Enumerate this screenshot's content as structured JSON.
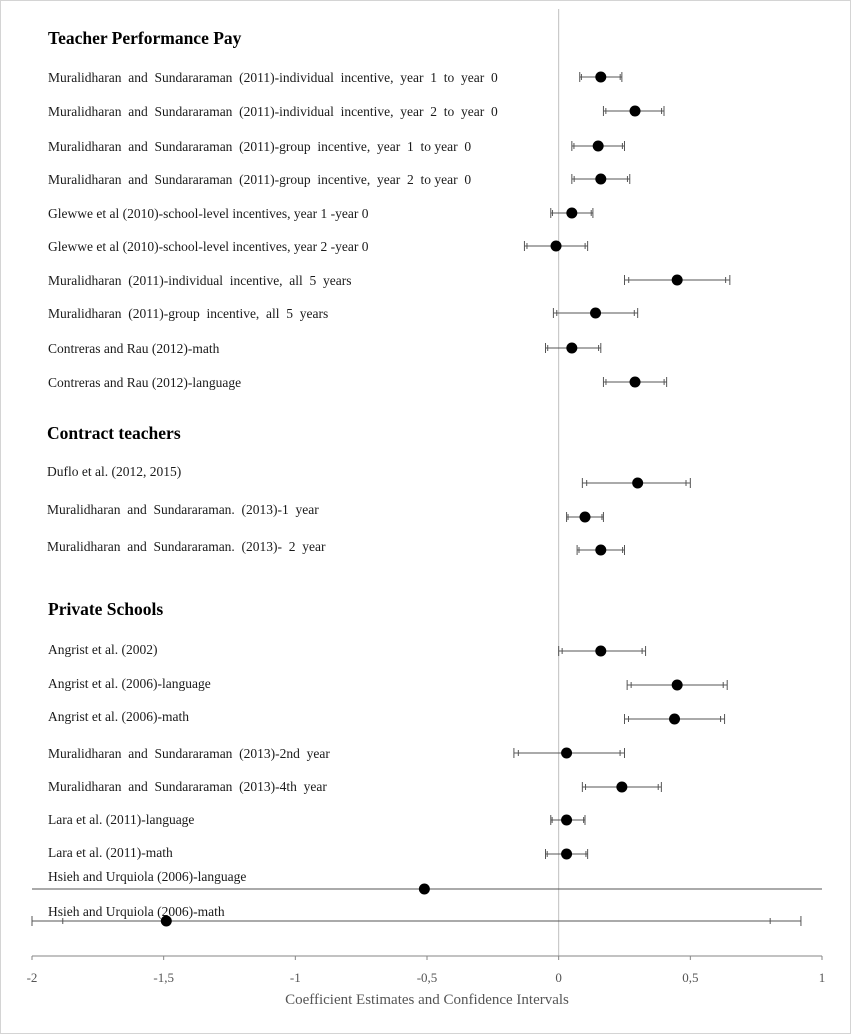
{
  "chart_data": {
    "type": "scatter",
    "subtype": "forest-plot",
    "xlabel": "Coefficient Estimates and Confidence Intervals",
    "xlim": [
      -2,
      1
    ],
    "xticks": [
      "-2",
      "-1,5",
      "-1",
      "-0,5",
      "0",
      "0,5",
      "1"
    ],
    "xtick_values": [
      -2,
      -1.5,
      -1,
      -0.5,
      0,
      0.5,
      1
    ],
    "grid": false,
    "legend": "none",
    "colors": {
      "marker": "#000000",
      "line": "#555555",
      "zero_line": "#bfbfbf",
      "axis": "#868686"
    },
    "groups": [
      {
        "name": "Teacher Performance Pay",
        "rows": [
          {
            "label": "Muralidharan  and  Sundararaman  (2011)-individual  incentive,  year  1  to  year  0",
            "est": 0.16,
            "lo": 0.08,
            "hi": 0.24
          },
          {
            "label": "Muralidharan  and  Sundararaman  (2011)-individual  incentive,  year  2  to  year  0",
            "est": 0.29,
            "lo": 0.17,
            "hi": 0.4
          },
          {
            "label": "Muralidharan  and  Sundararaman  (2011)-group  incentive,  year  1  to year  0",
            "est": 0.15,
            "lo": 0.05,
            "hi": 0.25
          },
          {
            "label": "Muralidharan  and  Sundararaman  (2011)-group  incentive,  year  2  to year  0",
            "est": 0.16,
            "lo": 0.05,
            "hi": 0.27
          },
          {
            "label": "Glewwe et al (2010)-school-level incentives, year 1 -year 0",
            "est": 0.05,
            "lo": -0.03,
            "hi": 0.13
          },
          {
            "label": "Glewwe et al (2010)-school-level incentives, year 2 -year 0",
            "est": -0.01,
            "lo": -0.13,
            "hi": 0.11
          },
          {
            "label": "Muralidharan  (2011)-individual  incentive,  all  5  years",
            "est": 0.45,
            "lo": 0.25,
            "hi": 0.65
          },
          {
            "label": "Muralidharan  (2011)-group  incentive,  all  5  years",
            "est": 0.14,
            "lo": -0.02,
            "hi": 0.3
          },
          {
            "label": "Contreras and Rau (2012)-math",
            "est": 0.05,
            "lo": -0.05,
            "hi": 0.16
          },
          {
            "label": "Contreras and Rau (2012)-language",
            "est": 0.29,
            "lo": 0.17,
            "hi": 0.41
          }
        ]
      },
      {
        "name": "Contract teachers",
        "rows": [
          {
            "label": "Duflo et al. (2012, 2015)",
            "est": 0.3,
            "lo": 0.09,
            "hi": 0.5
          },
          {
            "label": "Muralidharan  and  Sundararaman.  (2013)-1  year",
            "est": 0.1,
            "lo": 0.03,
            "hi": 0.17
          },
          {
            "label": "Muralidharan  and  Sundararaman.  (2013)-  2  year",
            "est": 0.16,
            "lo": 0.07,
            "hi": 0.25
          }
        ]
      },
      {
        "name": "Private Schools",
        "rows": [
          {
            "label": "Angrist et al. (2002)",
            "est": 0.16,
            "lo": 0.0,
            "hi": 0.33
          },
          {
            "label": "Angrist et al. (2006)-language",
            "est": 0.45,
            "lo": 0.26,
            "hi": 0.64
          },
          {
            "label": "Angrist et al. (2006)-math",
            "est": 0.44,
            "lo": 0.25,
            "hi": 0.63
          },
          {
            "label": "Muralidharan  and  Sundararaman  (2013)-2nd  year",
            "est": 0.03,
            "lo": -0.17,
            "hi": 0.25
          },
          {
            "label": "Muralidharan  and  Sundararaman  (2013)-4th  year",
            "est": 0.24,
            "lo": 0.09,
            "hi": 0.39
          },
          {
            "label": "Lara et al. (2011)-language",
            "est": 0.03,
            "lo": -0.03,
            "hi": 0.1
          },
          {
            "label": "Lara et al. (2011)-math",
            "est": 0.03,
            "lo": -0.05,
            "hi": 0.11
          },
          {
            "label": "Hsieh and Urquiola (2006)-language",
            "est": -0.51,
            "lo": -2.0,
            "hi": 1.0
          },
          {
            "label": "Hsieh and Urquiola (2006)-math",
            "est": -1.49,
            "lo": -2.0,
            "hi": 0.92
          }
        ]
      }
    ]
  }
}
